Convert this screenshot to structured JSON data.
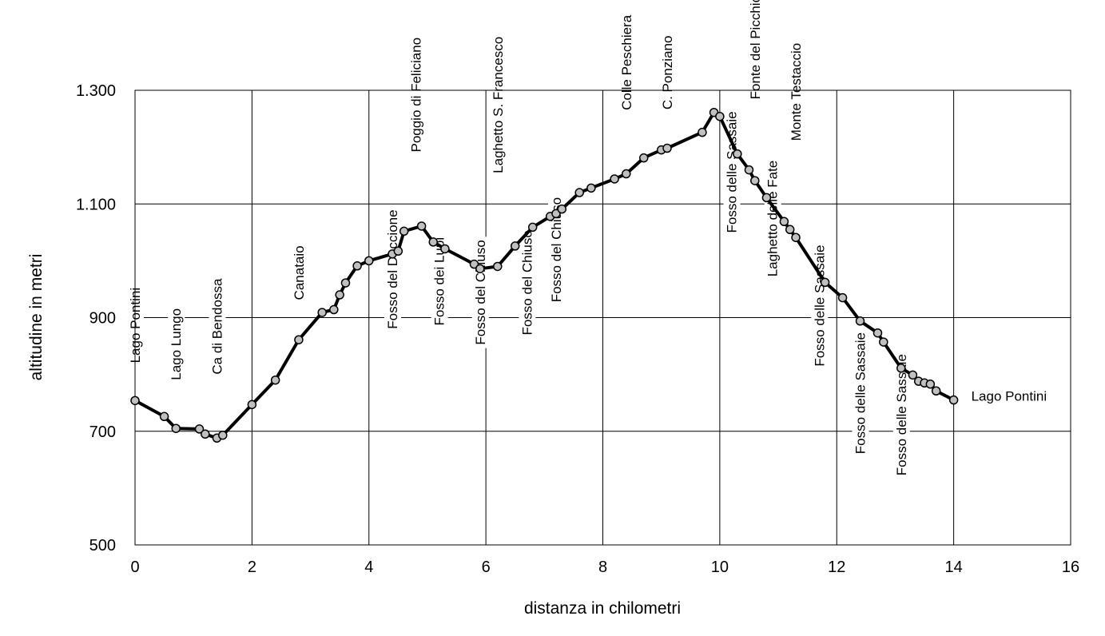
{
  "chart_data": {
    "type": "line",
    "title": "",
    "xlabel": "distanza in chilometri",
    "ylabel": "altitudine  in metri",
    "xlim": [
      0,
      16
    ],
    "ylim": [
      500,
      1300
    ],
    "xticks": [
      0,
      2,
      4,
      6,
      8,
      10,
      12,
      14,
      16
    ],
    "xtick_labels": [
      "0",
      "2",
      "4",
      "6",
      "8",
      "10",
      "12",
      "14",
      "16"
    ],
    "yticks": [
      500,
      700,
      900,
      1100,
      1300
    ],
    "ytick_labels": [
      "500",
      "700",
      "900",
      "1.100",
      "1.300"
    ],
    "grid": true,
    "legend": "none",
    "series": [
      {
        "line_color": "#000000",
        "marker_color": "#c0c0c0",
        "points": [
          [
            0.0,
            754
          ],
          [
            0.5,
            726
          ],
          [
            0.7,
            705
          ],
          [
            1.1,
            704
          ],
          [
            1.2,
            695
          ],
          [
            1.4,
            688
          ],
          [
            1.5,
            693
          ],
          [
            2.0,
            747
          ],
          [
            2.4,
            790
          ],
          [
            2.8,
            861
          ],
          [
            3.2,
            909
          ],
          [
            3.4,
            914
          ],
          [
            3.5,
            940
          ],
          [
            3.6,
            961
          ],
          [
            3.8,
            991
          ],
          [
            4.0,
            1000
          ],
          [
            4.4,
            1012
          ],
          [
            4.5,
            1017
          ],
          [
            4.6,
            1052
          ],
          [
            4.9,
            1061
          ],
          [
            5.1,
            1033
          ],
          [
            5.3,
            1021
          ],
          [
            5.8,
            994
          ],
          [
            5.9,
            986
          ],
          [
            6.2,
            990
          ],
          [
            6.5,
            1026
          ],
          [
            6.8,
            1059
          ],
          [
            7.1,
            1078
          ],
          [
            7.2,
            1083
          ],
          [
            7.3,
            1091
          ],
          [
            7.6,
            1120
          ],
          [
            7.8,
            1128
          ],
          [
            8.2,
            1144
          ],
          [
            8.4,
            1153
          ],
          [
            8.7,
            1181
          ],
          [
            9.0,
            1195
          ],
          [
            9.1,
            1198
          ],
          [
            9.7,
            1226
          ],
          [
            9.9,
            1261
          ],
          [
            10.0,
            1254
          ],
          [
            10.3,
            1188
          ],
          [
            10.5,
            1160
          ],
          [
            10.6,
            1141
          ],
          [
            10.8,
            1111
          ],
          [
            11.1,
            1069
          ],
          [
            11.2,
            1055
          ],
          [
            11.3,
            1041
          ],
          [
            11.8,
            962
          ],
          [
            12.1,
            935
          ],
          [
            12.4,
            894
          ],
          [
            12.7,
            873
          ],
          [
            12.8,
            857
          ],
          [
            13.1,
            811
          ],
          [
            13.3,
            799
          ],
          [
            13.4,
            788
          ],
          [
            13.5,
            785
          ],
          [
            13.6,
            783
          ],
          [
            13.7,
            771
          ],
          [
            14.0,
            755
          ]
        ]
      }
    ],
    "annotations": [
      {
        "text": "Lago Pontini",
        "x": 0.0,
        "y": 820,
        "rotate": true
      },
      {
        "text": "Lago Lungo",
        "x": 0.7,
        "y": 790,
        "rotate": true
      },
      {
        "text": "Ca di Bendossa",
        "x": 1.4,
        "y": 800,
        "rotate": true
      },
      {
        "text": "Canataio",
        "x": 2.8,
        "y": 931,
        "rotate": true
      },
      {
        "text": "Fosso del Doccione",
        "x": 4.4,
        "y": 880,
        "rotate": true
      },
      {
        "text": "Poggio di Feliciano",
        "x": 4.8,
        "y": 1191,
        "rotate": true
      },
      {
        "text": "Fosso dei Lupi",
        "x": 5.2,
        "y": 886,
        "rotate": true
      },
      {
        "text": "Fosso del Chiuso",
        "x": 5.9,
        "y": 852,
        "rotate": true
      },
      {
        "text": "Laghetto S. Francesco",
        "x": 6.2,
        "y": 1154,
        "rotate": true
      },
      {
        "text": "Fosso del Chiuso",
        "x": 6.7,
        "y": 869,
        "rotate": true
      },
      {
        "text": "Fosso del Chiuso",
        "x": 7.2,
        "y": 927,
        "rotate": true
      },
      {
        "text": "Colle Peschiera",
        "x": 8.4,
        "y": 1265,
        "rotate": true
      },
      {
        "text": "C. Ponziano",
        "x": 9.1,
        "y": 1266,
        "rotate": true
      },
      {
        "text": "Fosso delle Sassaie",
        "x": 10.2,
        "y": 1049,
        "rotate": true
      },
      {
        "text": "Fonte del Picchio",
        "x": 10.6,
        "y": 1284,
        "rotate": true
      },
      {
        "text": "Laghetto delle Fate",
        "x": 10.9,
        "y": 972,
        "rotate": true
      },
      {
        "text": "Monte Testaccio",
        "x": 11.3,
        "y": 1211,
        "rotate": true
      },
      {
        "text": "Fosso delle Sassaie",
        "x": 11.7,
        "y": 814,
        "rotate": true
      },
      {
        "text": "Fosso delle Sassaie",
        "x": 12.4,
        "y": 660,
        "rotate": true
      },
      {
        "text": "Fosso delle Sassaie",
        "x": 13.1,
        "y": 622,
        "rotate": true
      },
      {
        "text": "Lago Pontini",
        "x": 14.3,
        "y": 760,
        "rotate": false
      }
    ]
  }
}
